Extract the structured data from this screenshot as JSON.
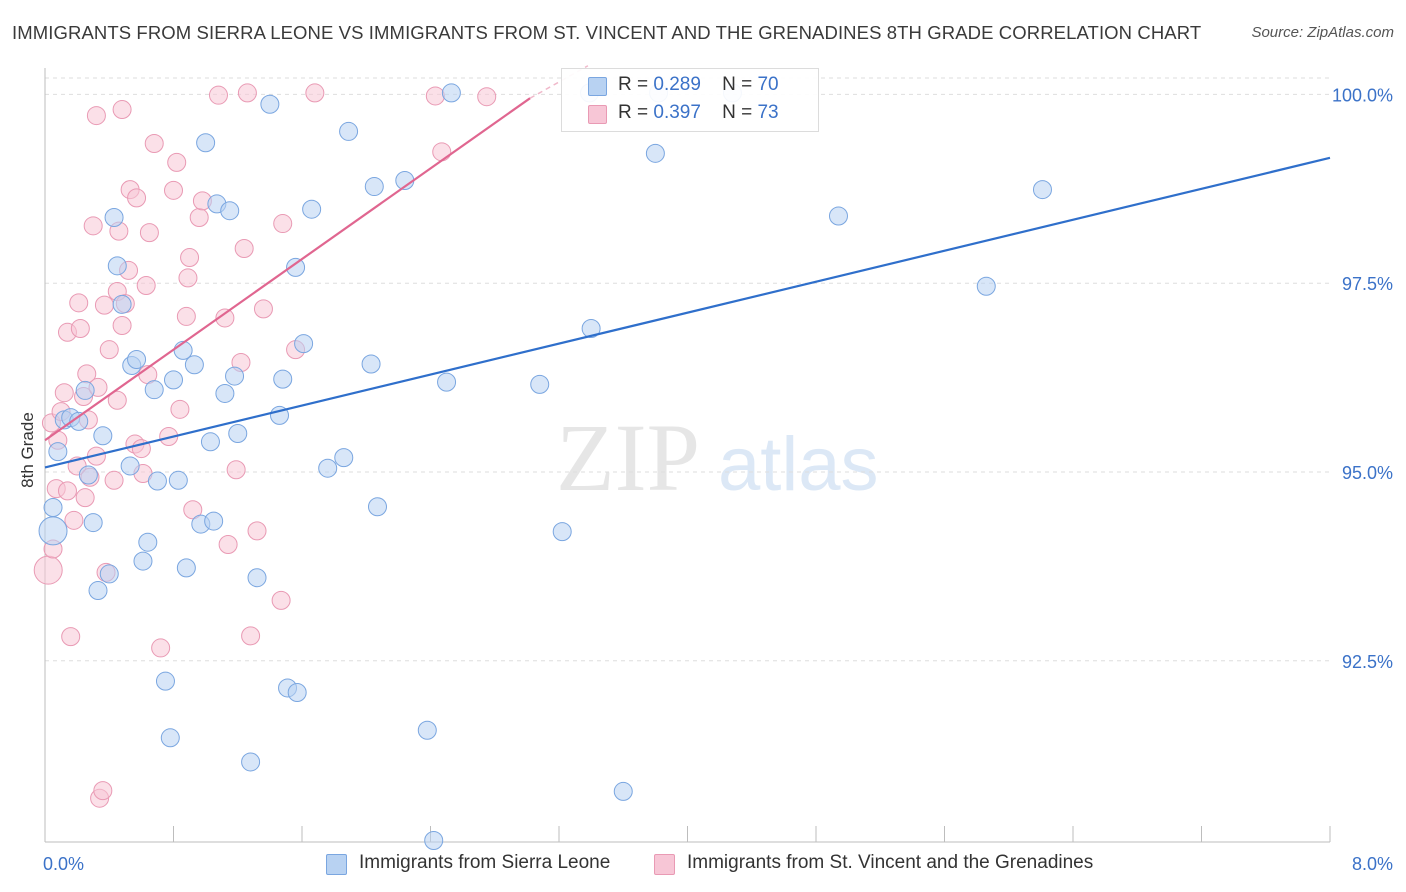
{
  "header": {
    "title": "IMMIGRANTS FROM SIERRA LEONE VS IMMIGRANTS FROM ST. VINCENT AND THE GRENADINES 8TH GRADE CORRELATION CHART",
    "source": "Source: ZipAtlas.com"
  },
  "watermark": {
    "zip": "ZIP",
    "atlas": "atlas"
  },
  "legend": {
    "r_label": "R =",
    "n_label": "N =",
    "rows": [
      {
        "r": "0.289",
        "n": "70"
      },
      {
        "r": "0.397",
        "n": "73"
      }
    ]
  },
  "colors": {
    "blue_fill": "#b8d2f2",
    "blue_stroke": "#7aa6e0",
    "blue_line": "#2f6fcb",
    "pink_fill": "#f7c6d6",
    "pink_stroke": "#e99ab4",
    "pink_line": "#e06690",
    "axis_text": "#3b72c8"
  },
  "chart_data": {
    "type": "scatter",
    "title": "IMMIGRANTS FROM SIERRA LEONE VS IMMIGRANTS FROM ST. VINCENT AND THE GRENADINES 8TH GRADE CORRELATION CHART",
    "xlabel": "",
    "ylabel": "8th Grade",
    "xlim": [
      0,
      8
    ],
    "ylim": [
      90.1,
      100.35
    ],
    "x_tick_labels": [
      "0.0%",
      "8.0%"
    ],
    "y_ticks": [
      92.5,
      95.0,
      97.5,
      100.0
    ],
    "y_tick_labels": [
      "92.5%",
      "95.0%",
      "97.5%",
      "100.0%"
    ],
    "grid": true,
    "legend_position": "top-center",
    "series": [
      {
        "name": "Immigrants from Sierra Leone",
        "r": 0.289,
        "n": 70,
        "trend": {
          "x": [
            0,
            8
          ],
          "y": [
            95.06,
            99.16
          ]
        },
        "points": [
          [
            0.05,
            94.22,
            14
          ],
          [
            0.05,
            94.53,
            9
          ],
          [
            0.08,
            95.27,
            9
          ],
          [
            0.12,
            95.69,
            9
          ],
          [
            0.16,
            95.72,
            9
          ],
          [
            0.21,
            95.67,
            9
          ],
          [
            0.25,
            96.08,
            9
          ],
          [
            0.27,
            94.96,
            9
          ],
          [
            0.3,
            94.33,
            9
          ],
          [
            0.33,
            93.43,
            9
          ],
          [
            0.36,
            95.48,
            9
          ],
          [
            0.4,
            93.65,
            9
          ],
          [
            0.43,
            98.37,
            9
          ],
          [
            0.45,
            97.73,
            9
          ],
          [
            0.48,
            97.22,
            9
          ],
          [
            0.53,
            95.08,
            9
          ],
          [
            0.54,
            96.41,
            9
          ],
          [
            0.57,
            96.49,
            9
          ],
          [
            0.61,
            93.82,
            9
          ],
          [
            0.64,
            94.07,
            9
          ],
          [
            0.68,
            96.09,
            9
          ],
          [
            0.7,
            94.88,
            9
          ],
          [
            0.75,
            92.23,
            9
          ],
          [
            0.78,
            91.48,
            9
          ],
          [
            0.8,
            96.22,
            9
          ],
          [
            0.83,
            94.89,
            9
          ],
          [
            0.86,
            96.61,
            9
          ],
          [
            0.88,
            93.73,
            9
          ],
          [
            0.93,
            96.42,
            9
          ],
          [
            0.97,
            94.31,
            9
          ],
          [
            1.0,
            99.36,
            9
          ],
          [
            1.03,
            95.4,
            9
          ],
          [
            1.05,
            94.35,
            9
          ],
          [
            1.07,
            98.55,
            9
          ],
          [
            1.12,
            96.04,
            9
          ],
          [
            1.15,
            98.46,
            9
          ],
          [
            1.18,
            96.27,
            9
          ],
          [
            1.2,
            95.51,
            9
          ],
          [
            1.28,
            91.16,
            9
          ],
          [
            1.32,
            93.6,
            9
          ],
          [
            1.4,
            99.87,
            9
          ],
          [
            1.46,
            95.75,
            9
          ],
          [
            1.48,
            96.23,
            9
          ],
          [
            1.51,
            92.14,
            9
          ],
          [
            1.56,
            97.71,
            9
          ],
          [
            1.57,
            92.08,
            9
          ],
          [
            1.61,
            96.7,
            9
          ],
          [
            1.66,
            98.48,
            9
          ],
          [
            1.76,
            95.05,
            9
          ],
          [
            1.86,
            95.19,
            9
          ],
          [
            1.89,
            99.51,
            9
          ],
          [
            2.03,
            96.43,
            9
          ],
          [
            2.05,
            98.78,
            9
          ],
          [
            2.07,
            94.54,
            9
          ],
          [
            2.24,
            98.86,
            9
          ],
          [
            2.38,
            91.58,
            9
          ],
          [
            2.42,
            90.12,
            9
          ],
          [
            2.5,
            96.19,
            9
          ],
          [
            2.53,
            100.02,
            9
          ],
          [
            3.08,
            96.16,
            9
          ],
          [
            3.22,
            94.21,
            9
          ],
          [
            3.39,
            100.02,
            9
          ],
          [
            3.4,
            96.9,
            9
          ],
          [
            3.6,
            90.77,
            9
          ],
          [
            3.82,
            100.02,
            9
          ],
          [
            3.8,
            99.22,
            9
          ],
          [
            4.28,
            100.02,
            9
          ],
          [
            4.94,
            98.39,
            9
          ],
          [
            5.86,
            97.46,
            9
          ],
          [
            6.21,
            98.74,
            9
          ]
        ]
      },
      {
        "name": "Immigrants from St. Vincent and the Grenadines",
        "r": 0.397,
        "n": 73,
        "trend": {
          "x": [
            0,
            3.02
          ],
          "y": [
            95.42,
            99.95
          ]
        },
        "dashed_extension": {
          "x": [
            3.02,
            3.38
          ],
          "y": [
            99.95,
            100.38
          ]
        },
        "points": [
          [
            0.02,
            93.7,
            14
          ],
          [
            0.04,
            95.65,
            9
          ],
          [
            0.05,
            93.98,
            9
          ],
          [
            0.07,
            94.78,
            9
          ],
          [
            0.08,
            95.42,
            9
          ],
          [
            0.1,
            95.8,
            9
          ],
          [
            0.12,
            96.05,
            9
          ],
          [
            0.14,
            96.85,
            9
          ],
          [
            0.14,
            94.75,
            9
          ],
          [
            0.16,
            92.82,
            9
          ],
          [
            0.18,
            94.36,
            9
          ],
          [
            0.2,
            95.08,
            9
          ],
          [
            0.21,
            97.24,
            9
          ],
          [
            0.22,
            96.9,
            9
          ],
          [
            0.24,
            96.0,
            9
          ],
          [
            0.25,
            94.66,
            9
          ],
          [
            0.26,
            96.3,
            9
          ],
          [
            0.27,
            95.69,
            9
          ],
          [
            0.28,
            94.93,
            9
          ],
          [
            0.3,
            98.26,
            9
          ],
          [
            0.32,
            95.21,
            9
          ],
          [
            0.32,
            99.72,
            9
          ],
          [
            0.33,
            96.12,
            9
          ],
          [
            0.34,
            90.68,
            9
          ],
          [
            0.36,
            90.78,
            9
          ],
          [
            0.37,
            97.21,
            9
          ],
          [
            0.38,
            93.67,
            9
          ],
          [
            0.4,
            96.62,
            9
          ],
          [
            0.43,
            94.89,
            9
          ],
          [
            0.45,
            97.39,
            9
          ],
          [
            0.45,
            95.95,
            9
          ],
          [
            0.46,
            98.19,
            9
          ],
          [
            0.48,
            99.8,
            9
          ],
          [
            0.48,
            96.94,
            9
          ],
          [
            0.5,
            97.23,
            9
          ],
          [
            0.52,
            97.67,
            9
          ],
          [
            0.53,
            98.74,
            9
          ],
          [
            0.56,
            95.37,
            9
          ],
          [
            0.57,
            98.63,
            9
          ],
          [
            0.6,
            95.31,
            9
          ],
          [
            0.61,
            94.98,
            9
          ],
          [
            0.63,
            97.47,
            9
          ],
          [
            0.64,
            96.29,
            9
          ],
          [
            0.65,
            98.17,
            9
          ],
          [
            0.68,
            99.35,
            9
          ],
          [
            0.72,
            92.67,
            9
          ],
          [
            0.77,
            95.47,
            9
          ],
          [
            0.8,
            98.73,
            9
          ],
          [
            0.82,
            99.1,
            9
          ],
          [
            0.84,
            95.83,
            9
          ],
          [
            0.88,
            97.06,
            9
          ],
          [
            0.89,
            97.57,
            9
          ],
          [
            0.9,
            97.84,
            9
          ],
          [
            0.92,
            94.5,
            9
          ],
          [
            0.96,
            98.37,
            9
          ],
          [
            0.98,
            98.59,
            9
          ],
          [
            1.08,
            99.99,
            9
          ],
          [
            1.12,
            97.04,
            9
          ],
          [
            1.14,
            94.04,
            9
          ],
          [
            1.19,
            95.03,
            9
          ],
          [
            1.22,
            96.45,
            9
          ],
          [
            1.24,
            97.96,
            9
          ],
          [
            1.26,
            100.02,
            9
          ],
          [
            1.28,
            92.83,
            9
          ],
          [
            1.32,
            94.22,
            9
          ],
          [
            1.36,
            97.16,
            9
          ],
          [
            1.47,
            93.3,
            9
          ],
          [
            1.48,
            98.29,
            9
          ],
          [
            1.56,
            96.62,
            9
          ],
          [
            1.68,
            100.02,
            9
          ],
          [
            2.43,
            99.98,
            9
          ],
          [
            2.47,
            99.24,
            9
          ],
          [
            2.75,
            99.97,
            9
          ]
        ]
      }
    ]
  },
  "bottom_legend": {
    "items": [
      {
        "label": "Immigrants from Sierra Leone"
      },
      {
        "label": "Immigrants from St. Vincent and the Grenadines"
      }
    ]
  }
}
